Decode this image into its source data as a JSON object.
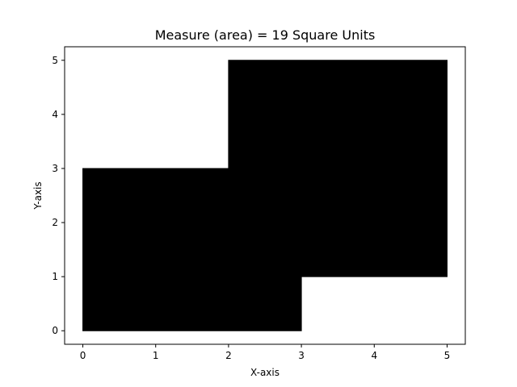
{
  "chart_data": {
    "type": "area",
    "title": "Measure (area) = 19 Square Units",
    "xlabel": "X-axis",
    "ylabel": "Y-axis",
    "xlim": [
      -0.25,
      5.25
    ],
    "ylim": [
      -0.25,
      5.25
    ],
    "xticks": [
      0,
      1,
      2,
      3,
      4,
      5
    ],
    "yticks": [
      0,
      1,
      2,
      3,
      4,
      5
    ],
    "grid": false,
    "fill_color": "#000000",
    "polygon": [
      [
        0,
        0
      ],
      [
        3,
        0
      ],
      [
        3,
        1
      ],
      [
        5,
        1
      ],
      [
        5,
        5
      ],
      [
        2,
        5
      ],
      [
        2,
        3
      ],
      [
        0,
        3
      ]
    ],
    "area": 19
  }
}
